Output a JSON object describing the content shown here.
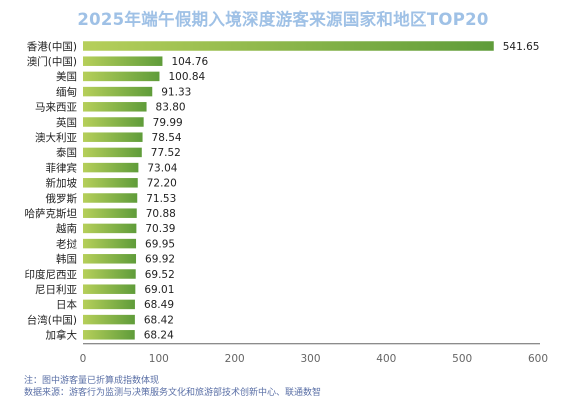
{
  "title": "2025年端午假期入境深度游客来源国家和地区TOP20",
  "notes": {
    "line1": "注：图中游客量已折算成指数体现",
    "line2": "数据来源：游客行为监测与决策服务文化和旅游部技术创新中心、联通数智"
  },
  "colors": {
    "bar_start": "#b6cf5a",
    "bar_end": "#5f9c3a",
    "axis": "#666666",
    "label": "#222222",
    "title": "#9fc1e6"
  },
  "chart_data": {
    "type": "bar",
    "orientation": "horizontal",
    "title": "2025年端午假期入境深度游客来源国家和地区TOP20",
    "xlabel": "",
    "ylabel": "",
    "xlim": [
      0,
      600
    ],
    "x_ticks": [
      "0",
      "100",
      "200",
      "300",
      "400",
      "500",
      "600"
    ],
    "grid": false,
    "categories": [
      "香港(中国)",
      "澳门(中国)",
      "美国",
      "缅甸",
      "马来西亚",
      "英国",
      "澳大利亚",
      "泰国",
      "菲律宾",
      "新加坡",
      "俄罗斯",
      "哈萨克斯坦",
      "越南",
      "老挝",
      "韩国",
      "印度尼西亚",
      "尼日利亚",
      "日本",
      "台湾(中国)",
      "加拿大"
    ],
    "values": [
      541.65,
      104.76,
      100.84,
      91.33,
      83.8,
      79.99,
      78.54,
      77.52,
      73.04,
      72.2,
      71.53,
      70.88,
      70.39,
      69.95,
      69.92,
      69.52,
      69.01,
      68.49,
      68.42,
      68.24
    ],
    "value_labels": [
      "541.65",
      "104.76",
      "100.84",
      "91.33",
      "83.80",
      "79.99",
      "78.54",
      "77.52",
      "73.04",
      "72.20",
      "71.53",
      "70.88",
      "70.39",
      "69.95",
      "69.92",
      "69.52",
      "69.01",
      "68.49",
      "68.42",
      "68.24"
    ]
  }
}
